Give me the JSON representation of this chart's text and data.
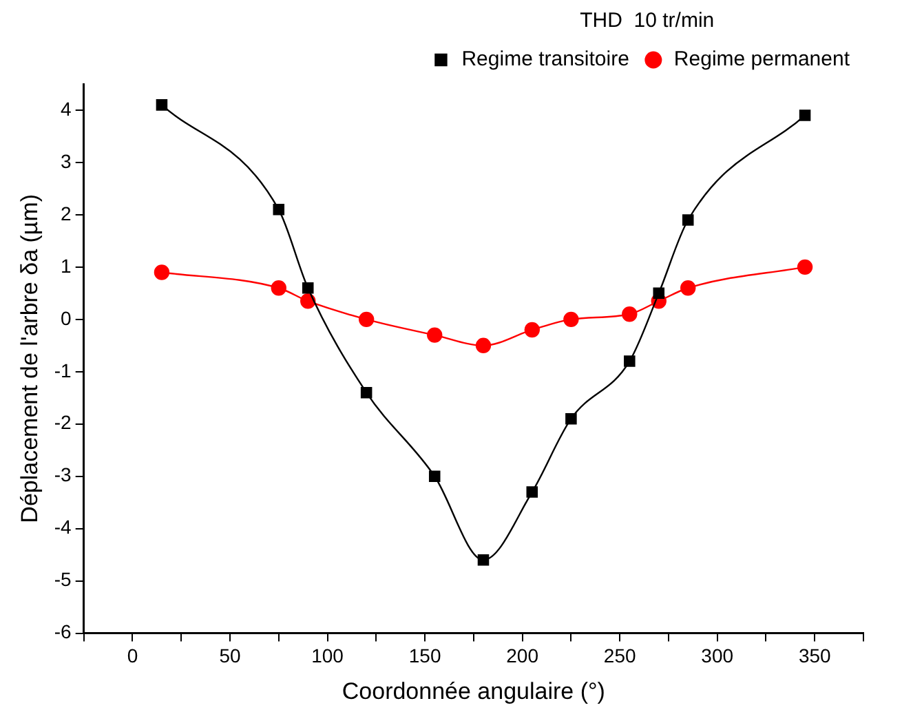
{
  "chart_data": {
    "type": "line",
    "xlabel": "Coordonnée angulaire (°)",
    "ylabel": "Déplacement de l'arbre δa (µm)",
    "legend_title": "THD  10 tr/min",
    "x": [
      15,
      75,
      90,
      120,
      155,
      180,
      205,
      225,
      255,
      270,
      285,
      345
    ],
    "series": [
      {
        "name": "Regime transitoire",
        "color": "#000000",
        "marker": "square",
        "values": [
          4.1,
          2.1,
          0.6,
          -1.4,
          -3.0,
          -4.6,
          -3.3,
          -1.9,
          -0.8,
          0.5,
          1.9,
          3.9
        ]
      },
      {
        "name": "Regime permanent",
        "color": "#ff0000",
        "marker": "circle",
        "values": [
          0.9,
          0.6,
          0.35,
          0.0,
          -0.3,
          -0.5,
          -0.2,
          0.0,
          0.1,
          0.35,
          0.6,
          1.0
        ]
      }
    ],
    "xlim": [
      -25,
      375
    ],
    "xticks": [
      {
        "value": -25,
        "label": null
      },
      0,
      {
        "value": 25,
        "label": null
      },
      50,
      {
        "value": 75,
        "label": null
      },
      100,
      {
        "value": 125,
        "label": null
      },
      150,
      {
        "value": 175,
        "label": null
      },
      200,
      {
        "value": 225,
        "label": null
      },
      250,
      {
        "value": 275,
        "label": null
      },
      300,
      {
        "value": 325,
        "label": null
      },
      350,
      {
        "value": 375,
        "label": null
      }
    ],
    "ylim": [
      -6,
      4.5
    ],
    "yticks": [
      -6,
      -5,
      -4,
      -3,
      -2,
      -1,
      0,
      1,
      2,
      3,
      4
    ],
    "grid": false,
    "legend": "top right"
  }
}
